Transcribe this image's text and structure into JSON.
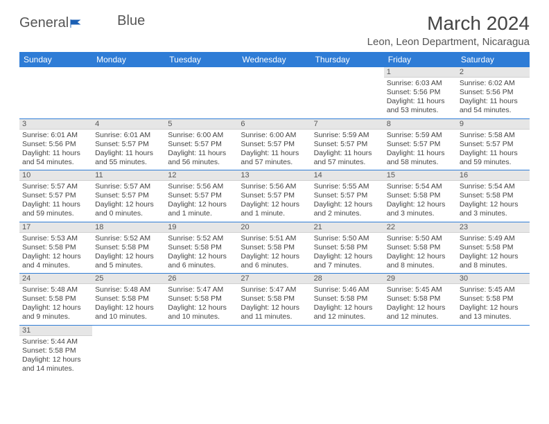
{
  "brand": {
    "name_a": "General",
    "name_b": "Blue"
  },
  "title": "March 2024",
  "location": "Leon, Leon Department, Nicaragua",
  "colors": {
    "header_bg": "#2e7cd6",
    "header_fg": "#ffffff",
    "daynum_bg": "#e6e6e6",
    "row_border": "#2e7cd6",
    "text": "#444444"
  },
  "typography": {
    "title_fontsize": 28,
    "location_fontsize": 15,
    "dayheader_fontsize": 12,
    "body_fontsize": 10.5
  },
  "day_headers": [
    "Sunday",
    "Monday",
    "Tuesday",
    "Wednesday",
    "Thursday",
    "Friday",
    "Saturday"
  ],
  "weeks": [
    [
      {
        "n": "",
        "sunrise": "",
        "sunset": "",
        "daylight": ""
      },
      {
        "n": "",
        "sunrise": "",
        "sunset": "",
        "daylight": ""
      },
      {
        "n": "",
        "sunrise": "",
        "sunset": "",
        "daylight": ""
      },
      {
        "n": "",
        "sunrise": "",
        "sunset": "",
        "daylight": ""
      },
      {
        "n": "",
        "sunrise": "",
        "sunset": "",
        "daylight": ""
      },
      {
        "n": "1",
        "sunrise": "Sunrise: 6:03 AM",
        "sunset": "Sunset: 5:56 PM",
        "daylight": "Daylight: 11 hours and 53 minutes."
      },
      {
        "n": "2",
        "sunrise": "Sunrise: 6:02 AM",
        "sunset": "Sunset: 5:56 PM",
        "daylight": "Daylight: 11 hours and 54 minutes."
      }
    ],
    [
      {
        "n": "3",
        "sunrise": "Sunrise: 6:01 AM",
        "sunset": "Sunset: 5:56 PM",
        "daylight": "Daylight: 11 hours and 54 minutes."
      },
      {
        "n": "4",
        "sunrise": "Sunrise: 6:01 AM",
        "sunset": "Sunset: 5:57 PM",
        "daylight": "Daylight: 11 hours and 55 minutes."
      },
      {
        "n": "5",
        "sunrise": "Sunrise: 6:00 AM",
        "sunset": "Sunset: 5:57 PM",
        "daylight": "Daylight: 11 hours and 56 minutes."
      },
      {
        "n": "6",
        "sunrise": "Sunrise: 6:00 AM",
        "sunset": "Sunset: 5:57 PM",
        "daylight": "Daylight: 11 hours and 57 minutes."
      },
      {
        "n": "7",
        "sunrise": "Sunrise: 5:59 AM",
        "sunset": "Sunset: 5:57 PM",
        "daylight": "Daylight: 11 hours and 57 minutes."
      },
      {
        "n": "8",
        "sunrise": "Sunrise: 5:59 AM",
        "sunset": "Sunset: 5:57 PM",
        "daylight": "Daylight: 11 hours and 58 minutes."
      },
      {
        "n": "9",
        "sunrise": "Sunrise: 5:58 AM",
        "sunset": "Sunset: 5:57 PM",
        "daylight": "Daylight: 11 hours and 59 minutes."
      }
    ],
    [
      {
        "n": "10",
        "sunrise": "Sunrise: 5:57 AM",
        "sunset": "Sunset: 5:57 PM",
        "daylight": "Daylight: 11 hours and 59 minutes."
      },
      {
        "n": "11",
        "sunrise": "Sunrise: 5:57 AM",
        "sunset": "Sunset: 5:57 PM",
        "daylight": "Daylight: 12 hours and 0 minutes."
      },
      {
        "n": "12",
        "sunrise": "Sunrise: 5:56 AM",
        "sunset": "Sunset: 5:57 PM",
        "daylight": "Daylight: 12 hours and 1 minute."
      },
      {
        "n": "13",
        "sunrise": "Sunrise: 5:56 AM",
        "sunset": "Sunset: 5:57 PM",
        "daylight": "Daylight: 12 hours and 1 minute."
      },
      {
        "n": "14",
        "sunrise": "Sunrise: 5:55 AM",
        "sunset": "Sunset: 5:57 PM",
        "daylight": "Daylight: 12 hours and 2 minutes."
      },
      {
        "n": "15",
        "sunrise": "Sunrise: 5:54 AM",
        "sunset": "Sunset: 5:58 PM",
        "daylight": "Daylight: 12 hours and 3 minutes."
      },
      {
        "n": "16",
        "sunrise": "Sunrise: 5:54 AM",
        "sunset": "Sunset: 5:58 PM",
        "daylight": "Daylight: 12 hours and 3 minutes."
      }
    ],
    [
      {
        "n": "17",
        "sunrise": "Sunrise: 5:53 AM",
        "sunset": "Sunset: 5:58 PM",
        "daylight": "Daylight: 12 hours and 4 minutes."
      },
      {
        "n": "18",
        "sunrise": "Sunrise: 5:52 AM",
        "sunset": "Sunset: 5:58 PM",
        "daylight": "Daylight: 12 hours and 5 minutes."
      },
      {
        "n": "19",
        "sunrise": "Sunrise: 5:52 AM",
        "sunset": "Sunset: 5:58 PM",
        "daylight": "Daylight: 12 hours and 6 minutes."
      },
      {
        "n": "20",
        "sunrise": "Sunrise: 5:51 AM",
        "sunset": "Sunset: 5:58 PM",
        "daylight": "Daylight: 12 hours and 6 minutes."
      },
      {
        "n": "21",
        "sunrise": "Sunrise: 5:50 AM",
        "sunset": "Sunset: 5:58 PM",
        "daylight": "Daylight: 12 hours and 7 minutes."
      },
      {
        "n": "22",
        "sunrise": "Sunrise: 5:50 AM",
        "sunset": "Sunset: 5:58 PM",
        "daylight": "Daylight: 12 hours and 8 minutes."
      },
      {
        "n": "23",
        "sunrise": "Sunrise: 5:49 AM",
        "sunset": "Sunset: 5:58 PM",
        "daylight": "Daylight: 12 hours and 8 minutes."
      }
    ],
    [
      {
        "n": "24",
        "sunrise": "Sunrise: 5:48 AM",
        "sunset": "Sunset: 5:58 PM",
        "daylight": "Daylight: 12 hours and 9 minutes."
      },
      {
        "n": "25",
        "sunrise": "Sunrise: 5:48 AM",
        "sunset": "Sunset: 5:58 PM",
        "daylight": "Daylight: 12 hours and 10 minutes."
      },
      {
        "n": "26",
        "sunrise": "Sunrise: 5:47 AM",
        "sunset": "Sunset: 5:58 PM",
        "daylight": "Daylight: 12 hours and 10 minutes."
      },
      {
        "n": "27",
        "sunrise": "Sunrise: 5:47 AM",
        "sunset": "Sunset: 5:58 PM",
        "daylight": "Daylight: 12 hours and 11 minutes."
      },
      {
        "n": "28",
        "sunrise": "Sunrise: 5:46 AM",
        "sunset": "Sunset: 5:58 PM",
        "daylight": "Daylight: 12 hours and 12 minutes."
      },
      {
        "n": "29",
        "sunrise": "Sunrise: 5:45 AM",
        "sunset": "Sunset: 5:58 PM",
        "daylight": "Daylight: 12 hours and 12 minutes."
      },
      {
        "n": "30",
        "sunrise": "Sunrise: 5:45 AM",
        "sunset": "Sunset: 5:58 PM",
        "daylight": "Daylight: 12 hours and 13 minutes."
      }
    ],
    [
      {
        "n": "31",
        "sunrise": "Sunrise: 5:44 AM",
        "sunset": "Sunset: 5:58 PM",
        "daylight": "Daylight: 12 hours and 14 minutes."
      },
      {
        "n": "",
        "sunrise": "",
        "sunset": "",
        "daylight": ""
      },
      {
        "n": "",
        "sunrise": "",
        "sunset": "",
        "daylight": ""
      },
      {
        "n": "",
        "sunrise": "",
        "sunset": "",
        "daylight": ""
      },
      {
        "n": "",
        "sunrise": "",
        "sunset": "",
        "daylight": ""
      },
      {
        "n": "",
        "sunrise": "",
        "sunset": "",
        "daylight": ""
      },
      {
        "n": "",
        "sunrise": "",
        "sunset": "",
        "daylight": ""
      }
    ]
  ]
}
